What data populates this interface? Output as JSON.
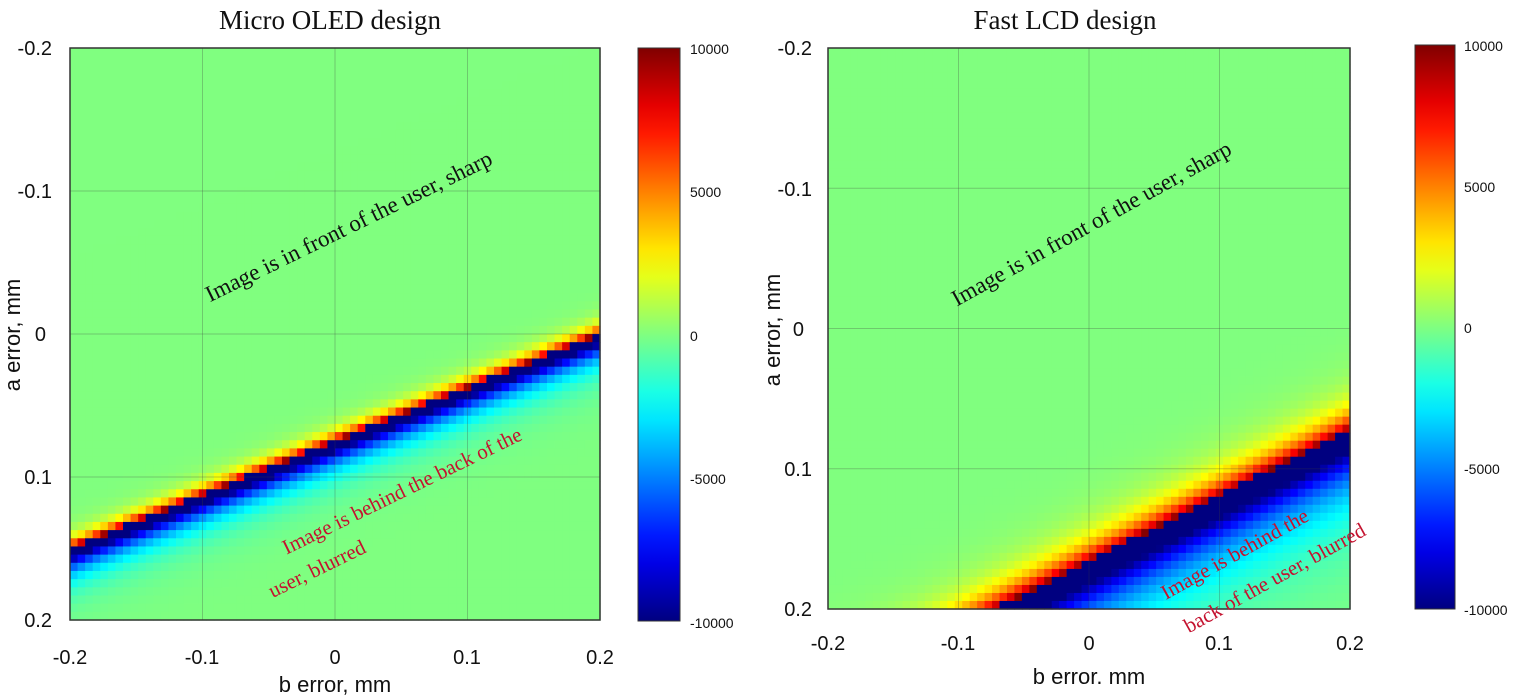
{
  "chart_data": [
    {
      "type": "heatmap",
      "title": "Micro OLED design",
      "xlabel": "b error, mm",
      "ylabel": "a error, mm",
      "xlim": [
        -0.2,
        0.2
      ],
      "ylim": [
        -0.2,
        0.2
      ],
      "y_reversed": true,
      "xticks": [
        "-0.2",
        "-0.1",
        "0",
        "0.1",
        "0.2"
      ],
      "yticks": [
        "-0.2",
        "-0.1",
        "0",
        "0.1",
        "0.2"
      ],
      "grid": true,
      "colormap": "jet",
      "clim": [
        -10000,
        10000
      ],
      "colorbar_ticks": [
        "10000",
        "5000",
        "0",
        "-5000",
        "-10000"
      ],
      "focus_line": {
        "a_at_b_min": 0.15,
        "a_at_b_max": 0.0
      },
      "value_near_line_sharp_side": 10000,
      "value_near_line_blurred_side": -10000,
      "value_far_from_line": 0,
      "annotations": [
        {
          "text": "Image is in front of the user, sharp",
          "color": "#111111"
        },
        {
          "text": "Image is behind the back of the",
          "color": "#c4122f"
        },
        {
          "text": "user, blurred",
          "color": "#c4122f"
        }
      ]
    },
    {
      "type": "heatmap",
      "title": "Fast LCD design",
      "xlabel": "b error. mm",
      "ylabel": "a error, mm",
      "xlim": [
        -0.2,
        0.2
      ],
      "ylim": [
        -0.2,
        0.2
      ],
      "y_reversed": true,
      "xticks": [
        "-0.2",
        "-0.1",
        "0",
        "0.1",
        "0.2"
      ],
      "yticks": [
        "-0.2",
        "-0.1",
        "0",
        "0.1",
        "0.2"
      ],
      "grid": true,
      "colormap": "jet",
      "clim": [
        -10000,
        10000
      ],
      "colorbar_ticks": [
        "10000",
        "5000",
        "0",
        "-5000",
        "-10000"
      ],
      "focus_line": {
        "a_at_b_min": 0.26,
        "a_at_b_max": 0.072
      },
      "value_near_line_sharp_side": 10000,
      "value_near_line_blurred_side": -10000,
      "value_far_from_line": 0,
      "annotations": [
        {
          "text": "Image is in front of the user, sharp",
          "color": "#111111"
        },
        {
          "text": "Image is behind the",
          "color": "#c4122f"
        },
        {
          "text": "back of the user, blurred",
          "color": "#c4122f"
        }
      ]
    }
  ]
}
